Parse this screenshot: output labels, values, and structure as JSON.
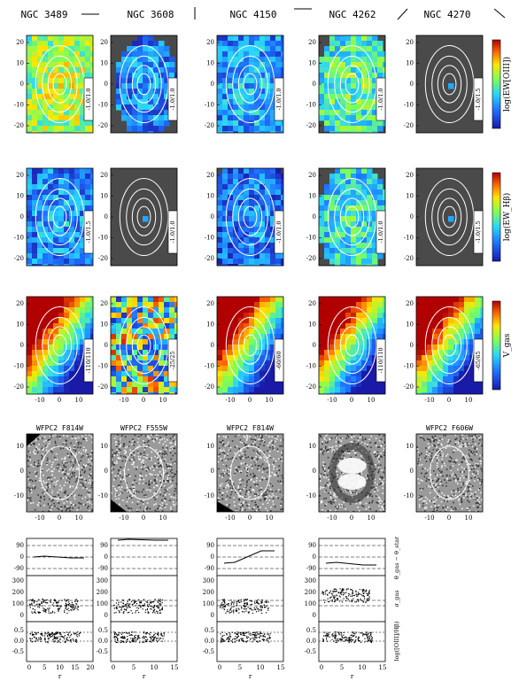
{
  "galaxies": [
    {
      "name": "NGC 3489",
      "ranges": [
        "-1.0/1.0",
        "-1.0/1.5",
        "-110/110"
      ],
      "hst": "WFPC2 F814W"
    },
    {
      "name": "NGC 3608",
      "ranges": [
        "-1.0/1.0",
        "-1.0/1.0",
        "-25/25"
      ],
      "hst": "WFPC2 F555W"
    },
    {
      "name": "NGC 4150",
      "ranges": [
        "-1.0/1.0",
        "-1.0/1.0",
        "-60/60"
      ],
      "hst": "WFPC2 F814W"
    },
    {
      "name": "NGC 4262",
      "ranges": [
        "-1.0/1.0",
        "-1.0/1.0",
        "-110/110"
      ],
      "hst": ""
    },
    {
      "name": "NGC 4270",
      "ranges": [
        "-1.0/1.5",
        "-1.0/1.5",
        "-65/65"
      ],
      "hst": "WFPC2 F606W"
    }
  ],
  "colorbars": [
    "log(EW[OIII])",
    "log(EW_Hβ)",
    "V_gas"
  ],
  "axis_ticks": {
    "map_y": [
      "20",
      "10",
      "0",
      "-10",
      "-20"
    ],
    "map_x": [
      "-10",
      "0",
      "10"
    ]
  },
  "profile_ticks": {
    "r_x": [
      "0",
      "5",
      "10",
      "15",
      "20"
    ],
    "r_x_short": [
      "0",
      "5",
      "10",
      "15"
    ],
    "pa_y": [
      "90",
      "0",
      "-90"
    ],
    "sigma_y": [
      "300",
      "200",
      "100",
      "0"
    ],
    "ratio_y": [
      "0.5",
      "0.0",
      "-0.5"
    ]
  },
  "profile_labels": {
    "x": "r",
    "pa": "θ_gas − θ_star",
    "sigma": "σ_gas",
    "ratio": "log([OIII]/Hβ)"
  }
}
